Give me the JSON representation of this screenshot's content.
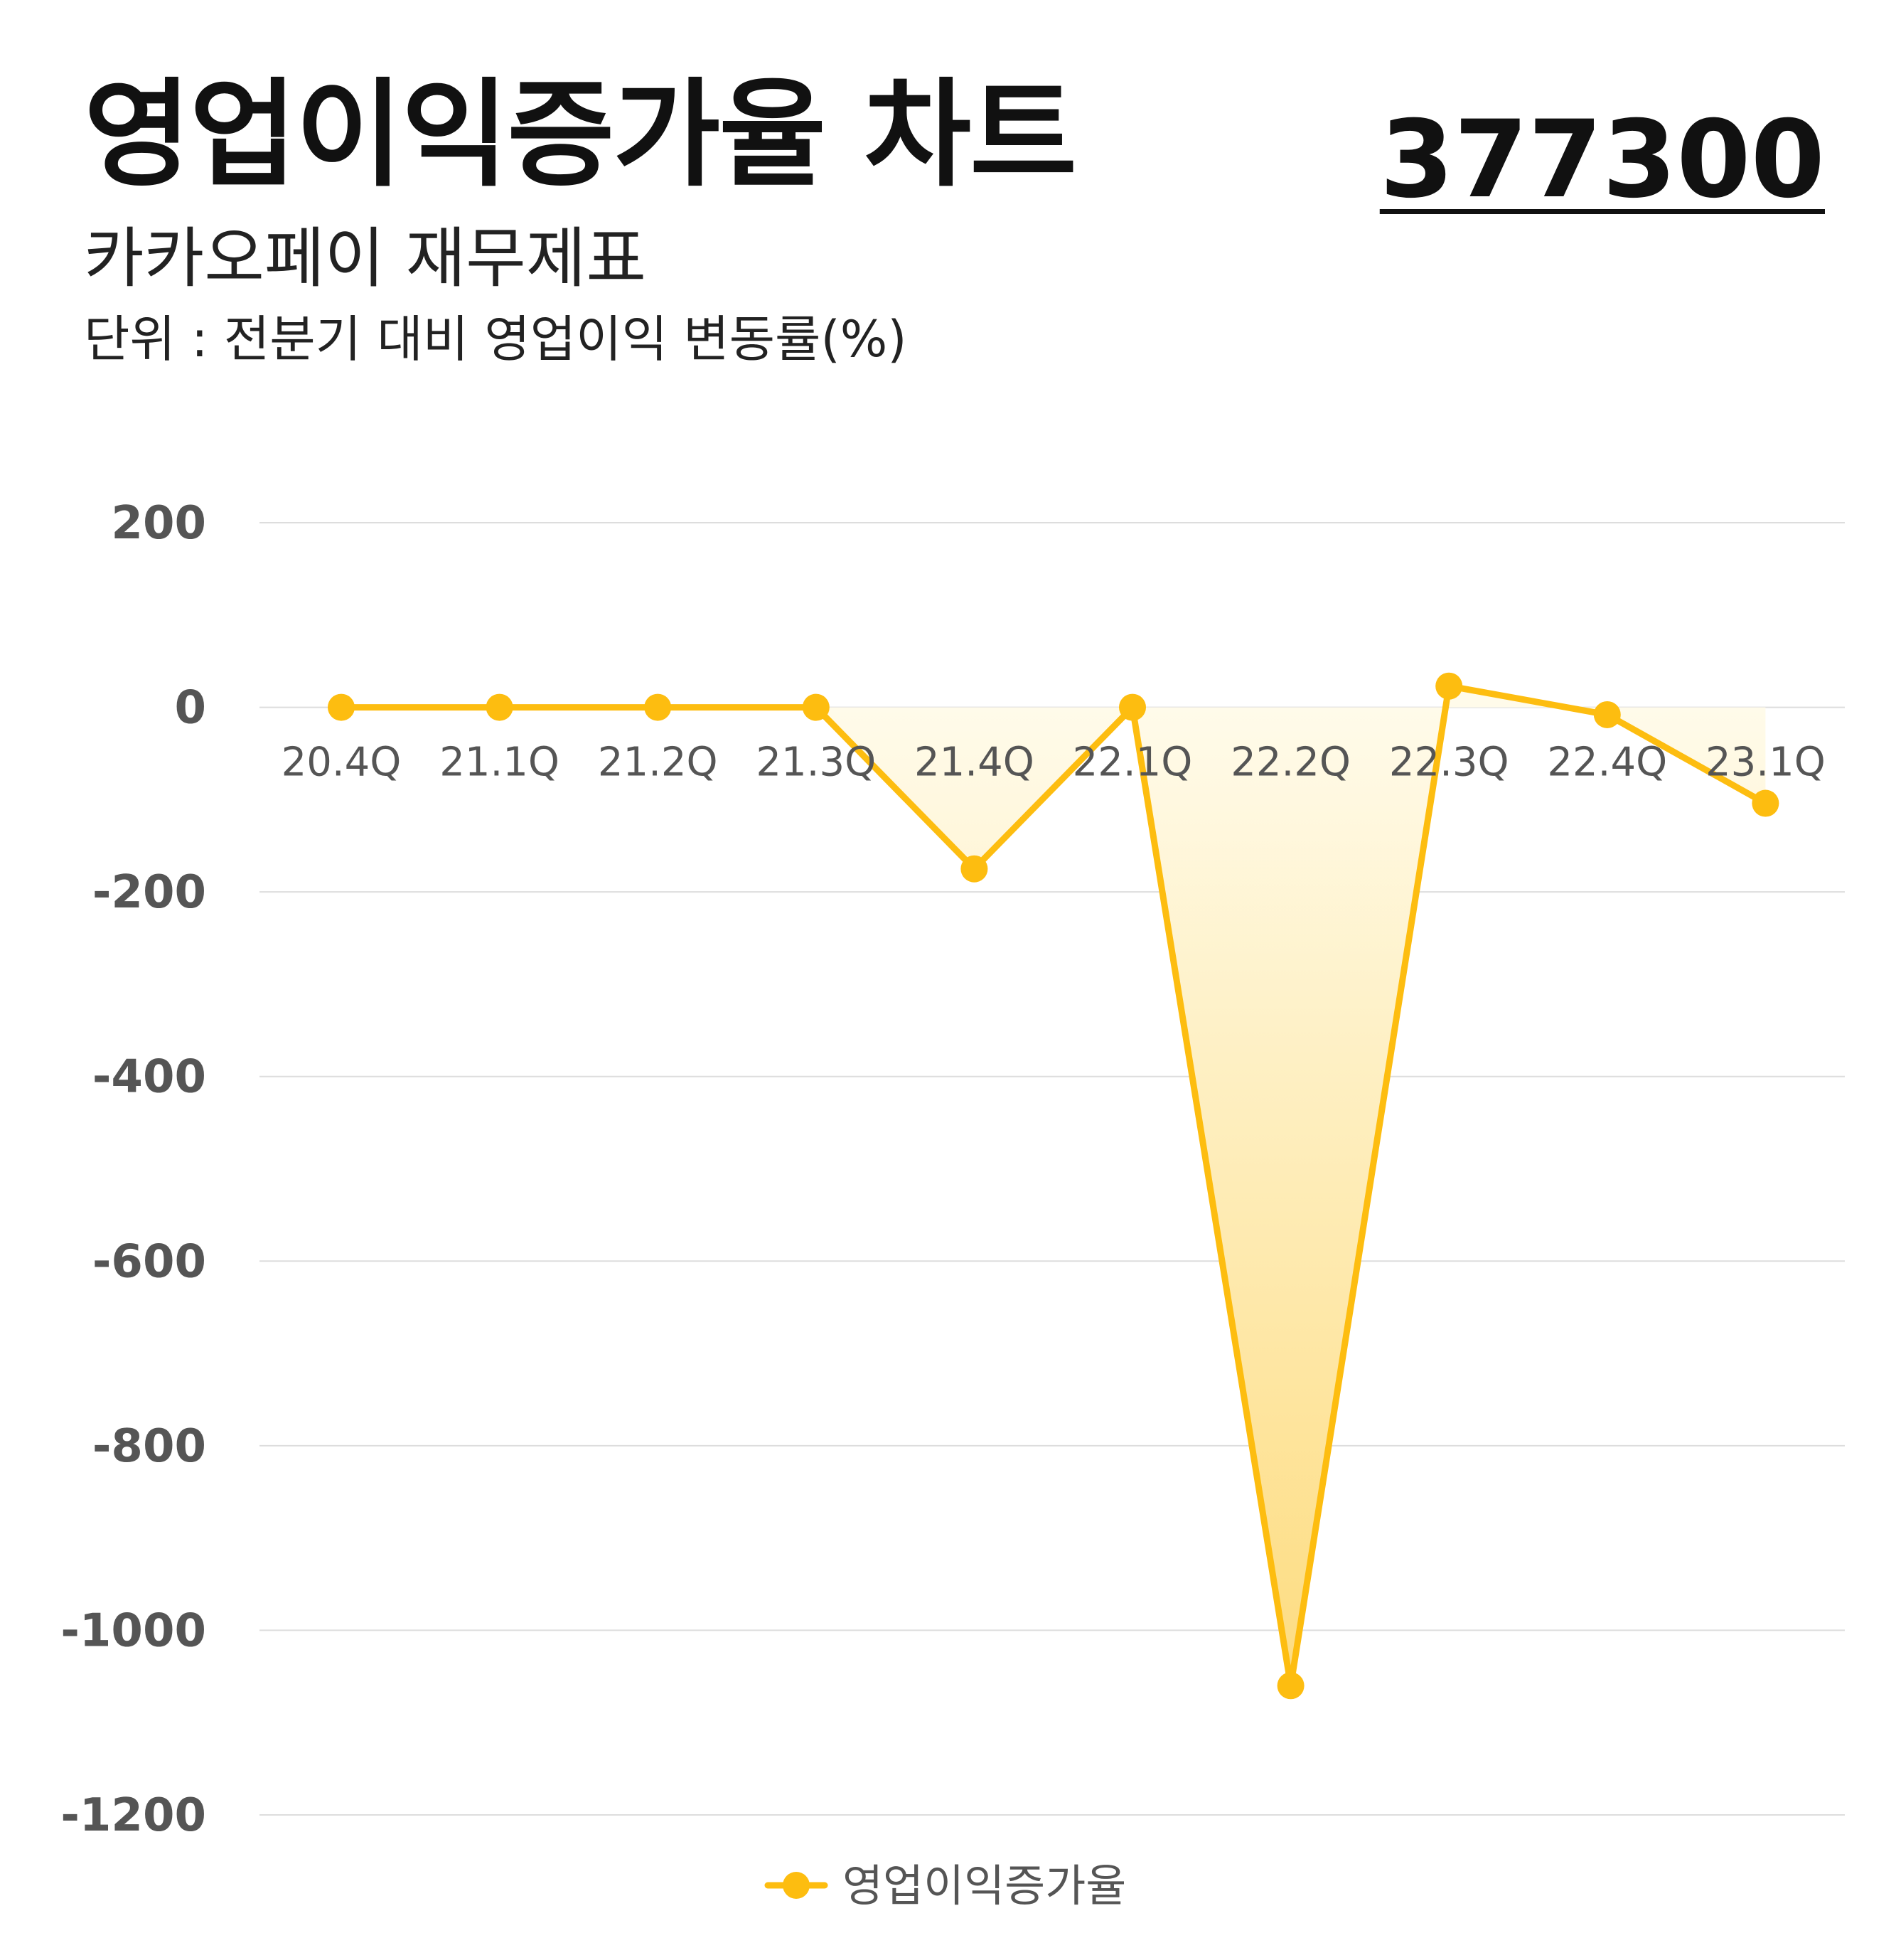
{
  "header": {
    "title": "영업이익증가율 차트",
    "subtitle": "카카오페이 재무제표",
    "unit": "단위 : 전분기 대비 영업이익 변동률(%)",
    "code": "377300"
  },
  "colors": {
    "line": "#FDBD10",
    "fill_top": "#FFFBEA",
    "fill_bottom": "#FDDC80",
    "grid": "#DDDDDD",
    "tick": "#555555"
  },
  "chart_data": {
    "type": "area",
    "categories": [
      "20.4Q",
      "21.1Q",
      "21.2Q",
      "21.3Q",
      "21.4Q",
      "22.1Q",
      "22.2Q",
      "22.3Q",
      "22.4Q",
      "23.1Q"
    ],
    "series": [
      {
        "name": "영업이익증가율",
        "values": [
          0,
          0,
          0,
          0,
          -175,
          0,
          -1060,
          23,
          -8,
          -104
        ]
      }
    ],
    "ylim": [
      -1200,
      200
    ],
    "yticks": [
      200,
      0,
      -200,
      -400,
      -600,
      -800,
      -1000,
      -1200
    ],
    "ytick_labels": [
      "200",
      "0",
      "-200",
      "-400",
      "-600",
      "-800",
      "-1000",
      "-1200"
    ],
    "grid": true,
    "legend": "bottom-center"
  }
}
